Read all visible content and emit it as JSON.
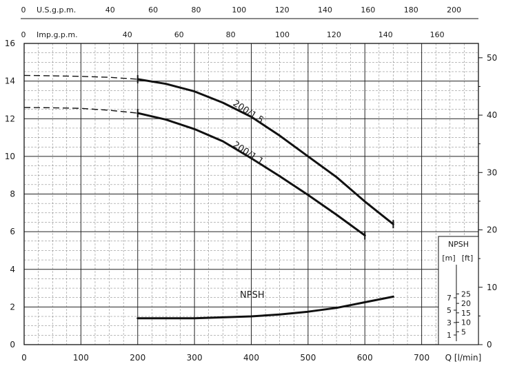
{
  "chart_data": {
    "type": "line",
    "xlabel": "Q [l/min]",
    "x_ticks": [
      0,
      100,
      200,
      300,
      400,
      500,
      600,
      700
    ],
    "xlim": [
      0,
      800
    ],
    "y_left_ticks": [
      0,
      2,
      4,
      6,
      8,
      10,
      12,
      14,
      16
    ],
    "ylim_left": [
      0,
      16
    ],
    "y_right_ticks": [
      0,
      10,
      20,
      30,
      40,
      50
    ],
    "ylim_right_ft": [
      0,
      52.5
    ],
    "top_axes": [
      {
        "label": "U.S.g.p.m.",
        "ticks": [
          "0",
          "40",
          "60",
          "80",
          "100",
          "120",
          "140",
          "160",
          "180",
          "200"
        ]
      },
      {
        "label": "Imp.g.p.m.",
        "ticks": [
          "0",
          "40",
          "60",
          "80",
          "100",
          "120",
          "140",
          "160"
        ]
      }
    ],
    "series": [
      {
        "name": "200/1.5",
        "dashed_x": [
          0,
          50,
          100,
          150,
          200
        ],
        "dashed_y": [
          14.3,
          14.28,
          14.25,
          14.2,
          14.1
        ],
        "x": [
          200,
          250,
          300,
          350,
          400,
          450,
          500,
          550,
          600,
          650
        ],
        "y": [
          14.1,
          13.85,
          13.45,
          12.85,
          12.1,
          11.1,
          10.0,
          8.9,
          7.6,
          6.4
        ]
      },
      {
        "name": "200/1.1",
        "dashed_x": [
          0,
          50,
          100,
          150,
          200
        ],
        "dashed_y": [
          12.6,
          12.58,
          12.55,
          12.45,
          12.3
        ],
        "x": [
          200,
          250,
          300,
          350,
          400,
          450,
          500,
          550,
          600
        ],
        "y": [
          12.3,
          11.95,
          11.45,
          10.8,
          9.9,
          8.95,
          7.95,
          6.9,
          5.8
        ]
      },
      {
        "name": "NPSH",
        "x": [
          200,
          300,
          400,
          450,
          500,
          550,
          600,
          650
        ],
        "y": [
          1.4,
          1.4,
          1.5,
          1.6,
          1.75,
          1.95,
          2.25,
          2.55
        ]
      }
    ],
    "npsh_inset": {
      "title": "NPSH",
      "unit_m": "[m]",
      "unit_ft": "[ft]",
      "m_ticks": [
        "1",
        "3",
        "5",
        "7"
      ],
      "ft_ticks": [
        "5",
        "10",
        "15",
        "20",
        "25"
      ]
    },
    "grid": true
  }
}
